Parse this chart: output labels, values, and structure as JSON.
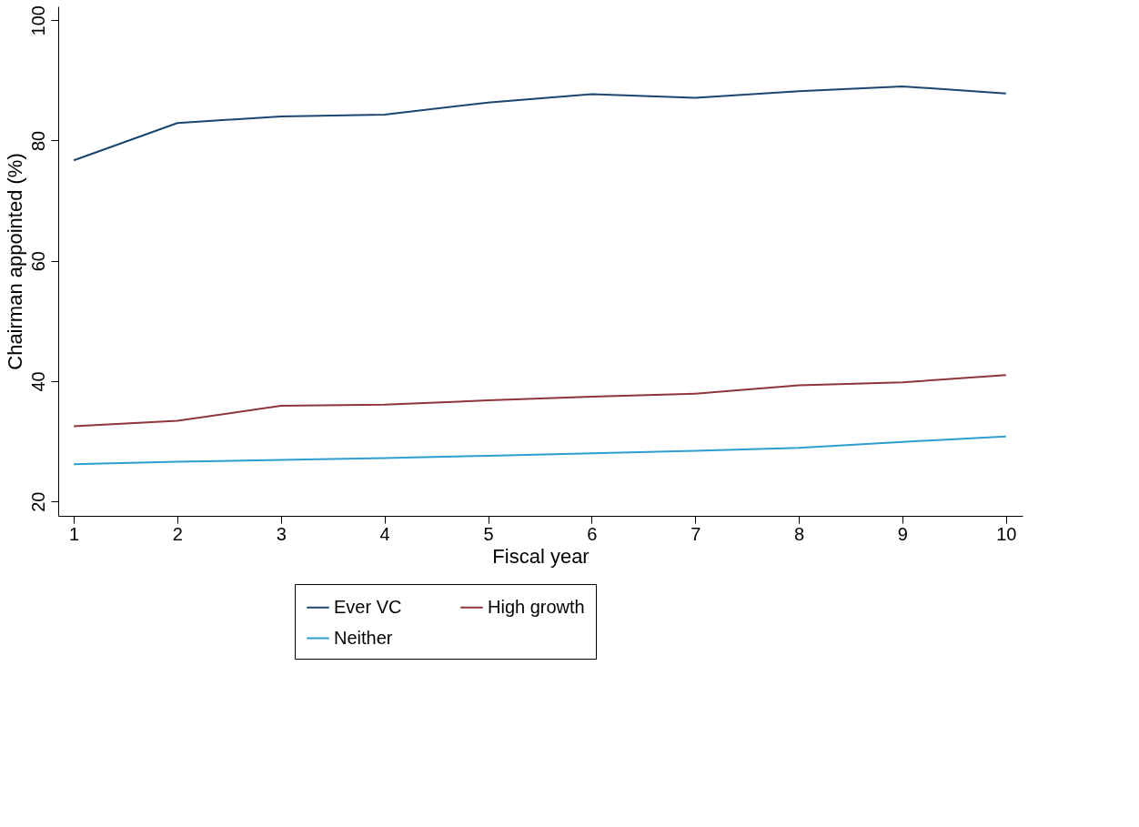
{
  "chart_data": {
    "type": "line",
    "xlabel": "Fiscal year",
    "ylabel": "Chairman appointed (%)",
    "x": [
      1,
      2,
      3,
      4,
      5,
      6,
      7,
      8,
      9,
      10
    ],
    "xlim": [
      0.85,
      10.16
    ],
    "xticks": [
      1,
      2,
      3,
      4,
      5,
      6,
      7,
      8,
      9,
      10
    ],
    "ylim": [
      17.6,
      102.3
    ],
    "yticks": [
      20,
      40,
      60,
      80,
      100
    ],
    "grid": false,
    "legend": "bottom",
    "marker": "none",
    "line_style": "solid",
    "series": [
      {
        "name": "Ever VC",
        "color": "#1a476f",
        "values": [
          76.7,
          82.9,
          84.0,
          84.3,
          86.3,
          87.7,
          87.1,
          88.2,
          89.0,
          87.8
        ]
      },
      {
        "name": "High growth",
        "color": "#90353b",
        "values": [
          32.5,
          33.4,
          35.9,
          36.1,
          36.8,
          37.4,
          37.9,
          39.3,
          39.8,
          41.0
        ]
      },
      {
        "name": "Neither",
        "color": "#2d9fd0",
        "values": [
          26.2,
          26.6,
          26.9,
          27.2,
          27.6,
          28.0,
          28.4,
          28.9,
          29.9,
          30.8
        ]
      }
    ]
  }
}
